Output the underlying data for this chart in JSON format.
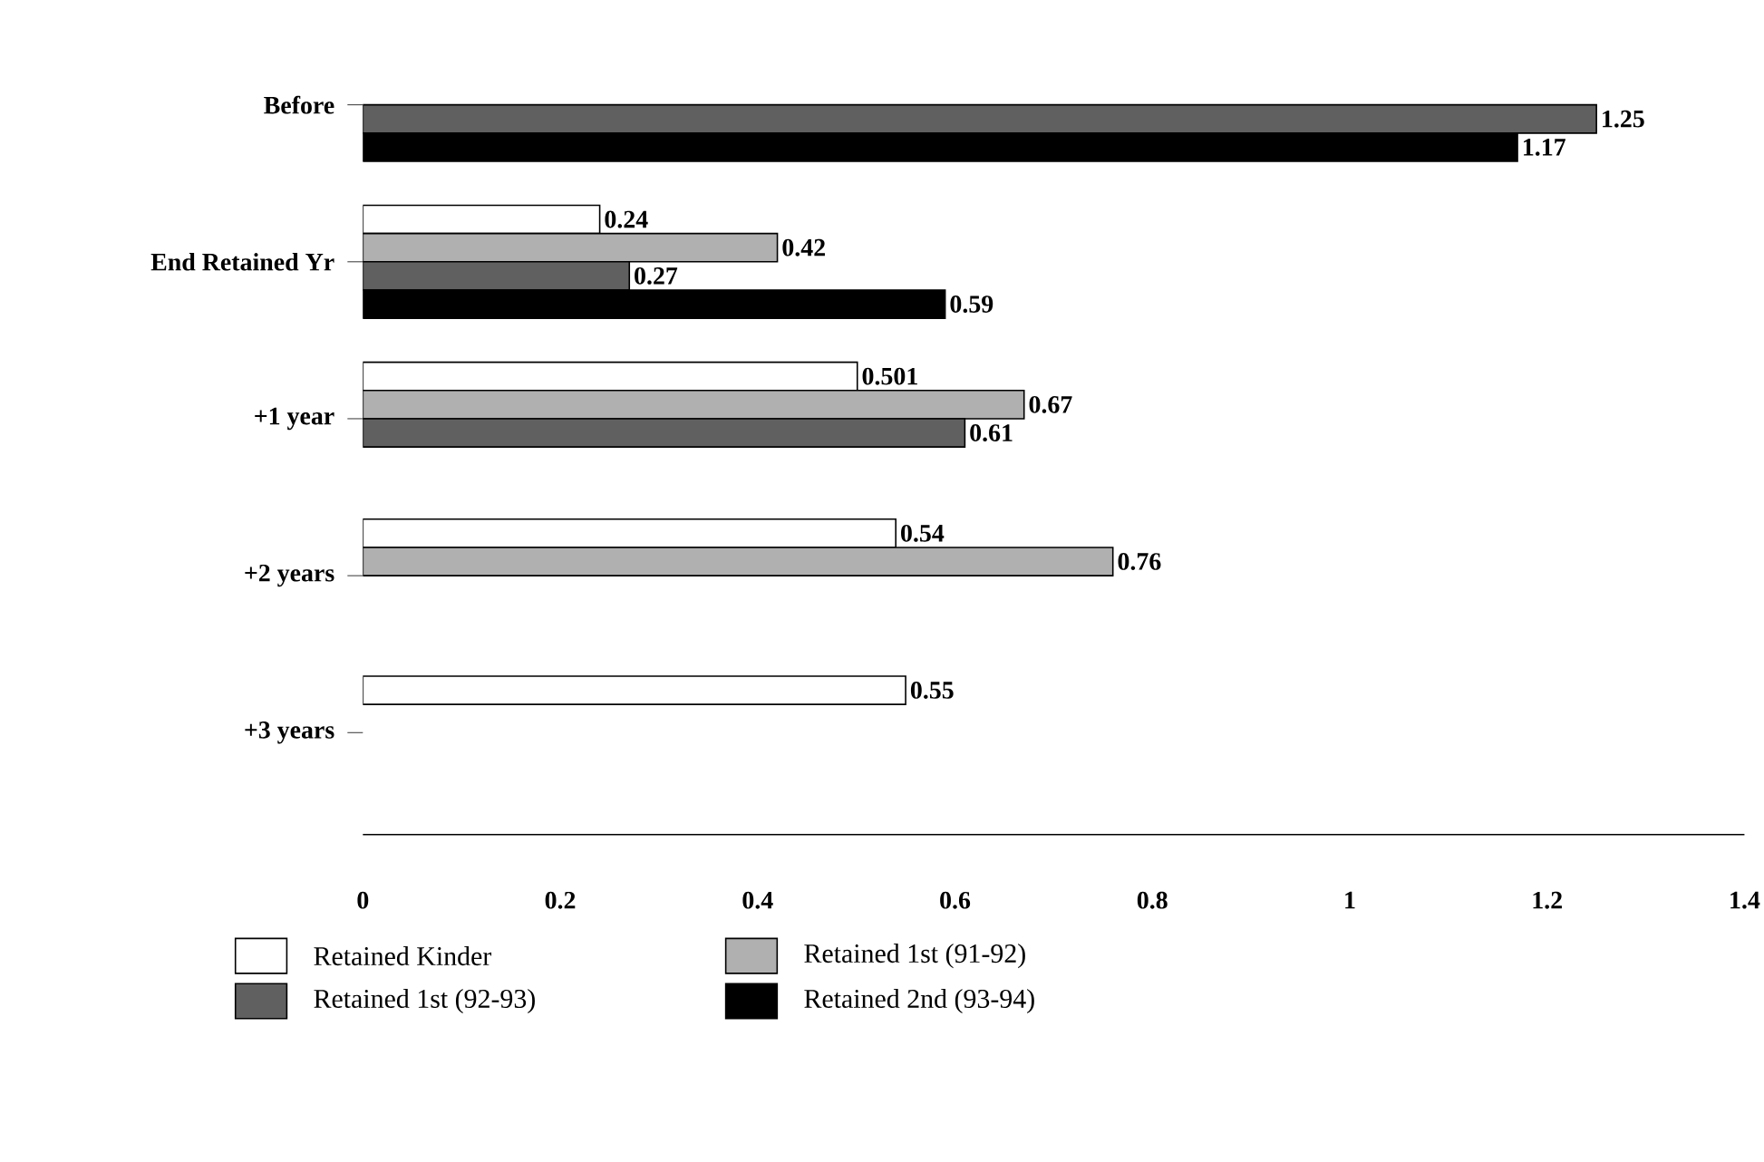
{
  "chart_data": {
    "type": "bar",
    "orientation": "horizontal",
    "categories": [
      "Before",
      "End Retained Yr",
      "+1 year",
      "+2 years",
      "+3 years"
    ],
    "series": [
      {
        "name": "Retained Kinder",
        "color": "#ffffff",
        "values": [
          null,
          0.24,
          0.501,
          0.54,
          0.55
        ],
        "value_labels": [
          null,
          "0.24",
          "0.501",
          "0.54",
          "0.55"
        ]
      },
      {
        "name": "Retained 1st (91-92)",
        "color": "#b0b0b0",
        "values": [
          null,
          0.42,
          0.67,
          0.76,
          null
        ],
        "value_labels": [
          null,
          "0.42",
          "0.67",
          "0.76",
          null
        ]
      },
      {
        "name": "Retained 1st (92-93)",
        "color": "#606060",
        "values": [
          1.25,
          0.27,
          0.61,
          null,
          null
        ],
        "value_labels": [
          "1.25",
          "0.27",
          "0.61",
          null,
          null
        ]
      },
      {
        "name": "Retained 2nd (93-94)",
        "color": "#000000",
        "values": [
          1.17,
          0.59,
          null,
          null,
          null
        ],
        "value_labels": [
          "1.17",
          "0.59",
          null,
          null,
          null
        ]
      }
    ],
    "xlim": [
      0,
      1.4
    ],
    "xticks": [
      0,
      0.2,
      0.4,
      0.6,
      0.8,
      1,
      1.2,
      1.4
    ],
    "grid": false,
    "legend": "bottom"
  }
}
